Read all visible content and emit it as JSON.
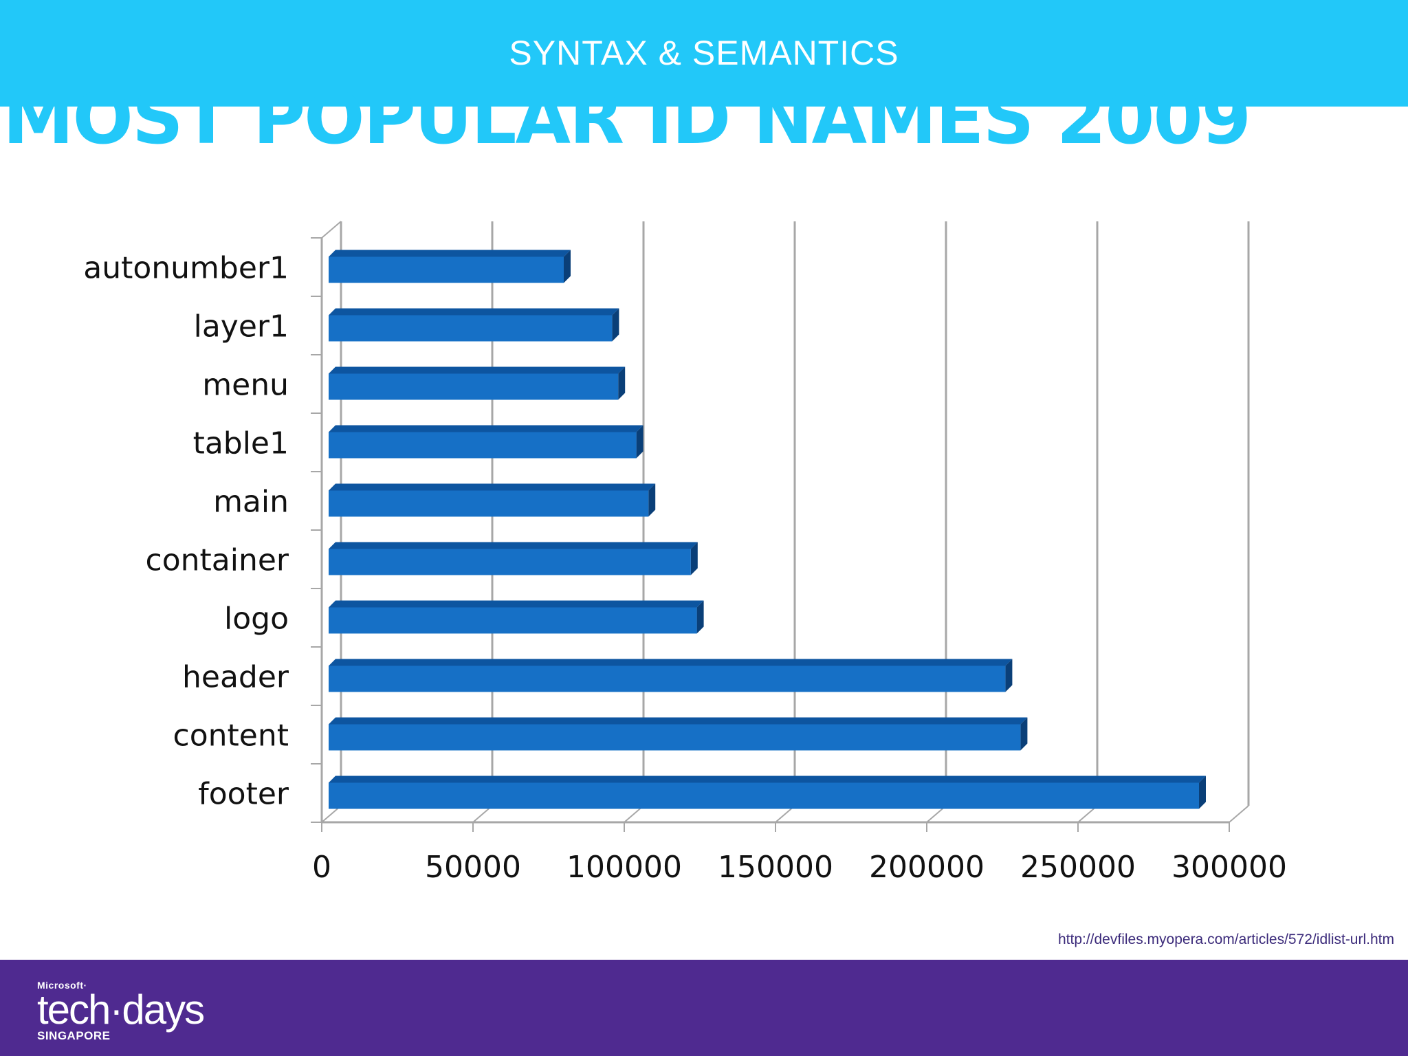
{
  "theme": {
    "top_band": "#22c8f9",
    "title": "#22c8f9",
    "bar_face": "#1670c6",
    "bar_top": "#0d55a0",
    "bar_side": "#0a3f78",
    "footer_band": "#4f2a90"
  },
  "header": {
    "section": "SYNTAX & SEMANTICS",
    "title": "MOST POPULAR ID NAMES 2009"
  },
  "chart_data": {
    "type": "bar",
    "orientation": "horizontal",
    "style": "3d",
    "categories": [
      "autonumber1",
      "layer1",
      "menu",
      "table1",
      "main",
      "container",
      "logo",
      "header",
      "content",
      "footer"
    ],
    "values": [
      80000,
      96000,
      98000,
      104000,
      108000,
      122000,
      124000,
      226000,
      231000,
      290000
    ],
    "xlim": [
      0,
      300000
    ],
    "x_ticks": [
      "0",
      "50000",
      "100000",
      "150000",
      "200000",
      "250000",
      "300000"
    ],
    "grid": true,
    "legend": "none"
  },
  "footer": {
    "source": "http://devfiles.myopera.com/articles/572/idlist-url.htm",
    "logo": {
      "top": "Microsoft·",
      "main": "tech·days",
      "sub": "SINGAPORE"
    }
  }
}
